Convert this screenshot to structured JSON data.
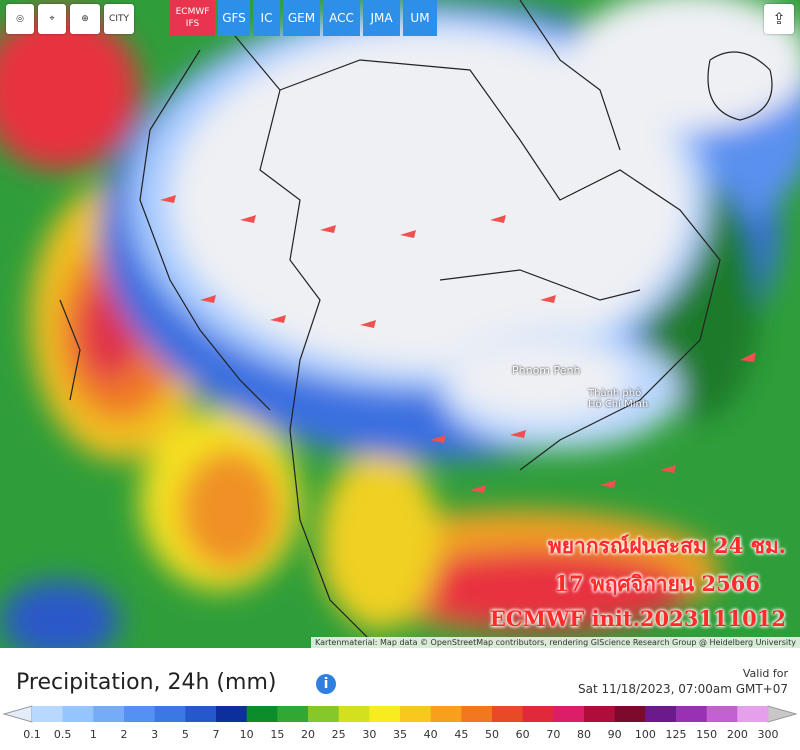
{
  "toolbar": {
    "city": "CITY",
    "models": [
      "ECMWF IFS",
      "GFS",
      "IC",
      "GEM",
      "ACC",
      "JMA",
      "UM"
    ]
  },
  "map": {
    "places": [
      "Phnom Penh",
      "Thành phố Hồ Chí Minh"
    ],
    "overlay": [
      "พยากรณ์ฝนสะสม 24 ชม.",
      "17 พฤศจิกายน 2566",
      "ECMWF init.2023111012"
    ],
    "attribution": "Kartenmaterial: Map data © OpenStreetMap contributors, rendering GIScience Research Group @ Heidelberg University"
  },
  "legend": {
    "title": "Precipitation, 24h (mm)",
    "valid_label": "Valid for",
    "valid_time": "Sat 11/18/2023, 07:00am GMT+07",
    "labels": [
      "0.1",
      "0.5",
      "1",
      "2",
      "3",
      "5",
      "7",
      "10",
      "15",
      "20",
      "25",
      "30",
      "35",
      "40",
      "45",
      "50",
      "60",
      "70",
      "80",
      "90",
      "100",
      "125",
      "150",
      "200",
      "300"
    ],
    "colors": [
      "#b8d8ff",
      "#96c4ff",
      "#74acf8",
      "#5392f0",
      "#3a78e4",
      "#2459cc",
      "#0d2f9c",
      "#0c8c2a",
      "#32a832",
      "#86c82a",
      "#d2e020",
      "#f6ec1e",
      "#f8c81e",
      "#f6a01e",
      "#f07820",
      "#e84a28",
      "#e02a3c",
      "#dc1e68",
      "#b00e3a",
      "#7c0a2c",
      "#6a1a8c",
      "#9a30b4",
      "#c460d2",
      "#e4a0ea"
    ]
  }
}
